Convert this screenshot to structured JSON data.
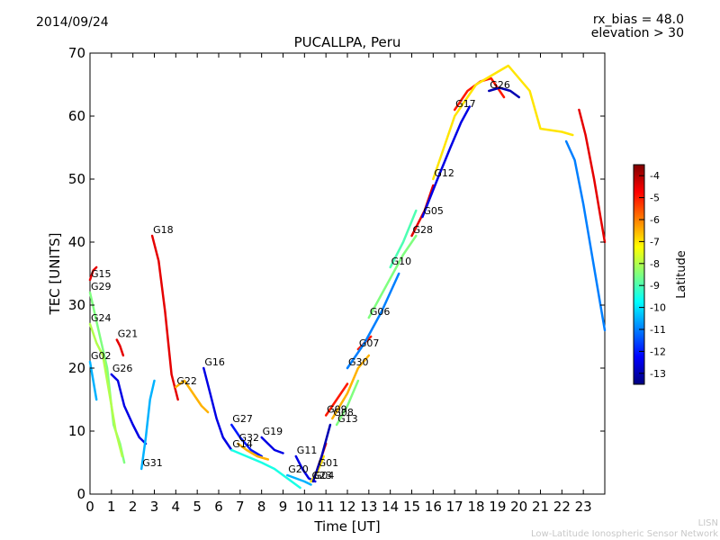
{
  "header": {
    "date": "2014/09/24",
    "rx_bias": "rx_bias = 48.0",
    "elevation": "elevation > 30"
  },
  "footer": {
    "line1": "LISN",
    "line2": "Low-Latitude Ionospheric Sensor Network"
  },
  "colorbar": {
    "label": "Latitude",
    "min": -13.5,
    "max": -3.5,
    "ticks": [
      "-4",
      "-5",
      "-6",
      "-7",
      "-8",
      "-9",
      "-10",
      "-11",
      "-12",
      "-13"
    ],
    "colors": [
      "#00007f",
      "#0000ff",
      "#007fff",
      "#00ffff",
      "#7fff7f",
      "#ffff00",
      "#ff7f00",
      "#ff0000",
      "#7f0000"
    ]
  },
  "chart_data": {
    "type": "scatter",
    "title": "PUCALLPA, Peru",
    "xlabel": "Time [UT]",
    "ylabel": "TEC [UNITS]",
    "xlim": [
      0,
      24
    ],
    "ylim": [
      0,
      70
    ],
    "xticks": [
      "0",
      "1",
      "2",
      "3",
      "4",
      "5",
      "6",
      "7",
      "8",
      "9",
      "10",
      "11",
      "12",
      "13",
      "14",
      "15",
      "16",
      "17",
      "18",
      "19",
      "20",
      "21",
      "22",
      "23"
    ],
    "yticks": [
      "0",
      "10",
      "20",
      "30",
      "40",
      "50",
      "60",
      "70"
    ],
    "color_variable": "Latitude",
    "series": [
      {
        "name": "G15",
        "lat": -4.5,
        "x": [
          0.0,
          0.15,
          0.3
        ],
        "y": [
          34,
          35.5,
          36
        ]
      },
      {
        "name": "G29",
        "lat": -8.5,
        "x": [
          0.0,
          0.4,
          0.8,
          1.1,
          1.4,
          1.6
        ],
        "y": [
          32,
          26,
          20,
          11,
          8,
          5
        ]
      },
      {
        "name": "G24",
        "lat": -8.0,
        "x": [
          0.0,
          0.3,
          0.6,
          0.9,
          1.2,
          1.5
        ],
        "y": [
          27,
          24,
          22,
          16,
          10,
          6
        ]
      },
      {
        "name": "G02",
        "lat": -10.5,
        "x": [
          0.0,
          0.15,
          0.3
        ],
        "y": [
          21,
          18,
          15
        ]
      },
      {
        "name": "G21",
        "lat": -4.5,
        "x": [
          1.25,
          1.4,
          1.55
        ],
        "y": [
          24.5,
          23.5,
          22
        ]
      },
      {
        "name": "G26",
        "lat": -12.5,
        "x": [
          1.0,
          1.3,
          1.6,
          2.0,
          2.3,
          2.6
        ],
        "y": [
          19,
          18,
          14,
          11,
          9,
          8
        ]
      },
      {
        "name": "G31",
        "lat": -10.5,
        "x": [
          2.4,
          2.6,
          2.8,
          3.0
        ],
        "y": [
          4,
          9,
          15,
          18
        ]
      },
      {
        "name": "G18",
        "lat": -4.5,
        "x": [
          2.9,
          3.2,
          3.5,
          3.8,
          4.1
        ],
        "y": [
          41,
          37,
          29,
          19,
          15
        ]
      },
      {
        "name": "G22",
        "lat": -6.5,
        "x": [
          4.0,
          4.4,
          4.8,
          5.2,
          5.5
        ],
        "y": [
          17,
          18,
          16,
          14,
          13
        ]
      },
      {
        "name": "G16",
        "lat": -12.5,
        "x": [
          5.3,
          5.6,
          5.9,
          6.2,
          6.6
        ],
        "y": [
          20,
          16,
          12,
          9,
          7
        ]
      },
      {
        "name": "G27",
        "lat": -12.0,
        "x": [
          6.6,
          7.0,
          7.5,
          8.0
        ],
        "y": [
          11,
          9,
          7,
          6
        ]
      },
      {
        "name": "G32",
        "lat": -6.5,
        "x": [
          6.9,
          7.3,
          7.8,
          8.3
        ],
        "y": [
          8,
          7,
          6,
          5.5
        ]
      },
      {
        "name": "G14",
        "lat": -9.5,
        "x": [
          6.6,
          7.3,
          8.0,
          8.6,
          9.2,
          9.8
        ],
        "y": [
          7,
          6,
          5,
          4,
          2.5,
          1
        ]
      },
      {
        "name": "G19",
        "lat": -12.5,
        "x": [
          8.0,
          8.3,
          8.6,
          9.0
        ],
        "y": [
          9,
          8,
          7,
          6.5
        ]
      },
      {
        "name": "G11",
        "lat": -12.5,
        "x": [
          9.6,
          9.9,
          10.2,
          10.5
        ],
        "y": [
          6,
          4,
          2.5,
          2
        ]
      },
      {
        "name": "G20",
        "lat": -10.5,
        "x": [
          9.2,
          9.6,
          10.0,
          10.3
        ],
        "y": [
          3,
          2.5,
          2,
          1.5
        ]
      },
      {
        "name": "G23",
        "lat": -7.0,
        "x": [
          10.3,
          10.6,
          10.9
        ],
        "y": [
          2,
          3.5,
          6
        ]
      },
      {
        "name": "G01",
        "lat": -5.0,
        "x": [
          10.6,
          10.8,
          11.0
        ],
        "y": [
          4,
          6,
          8
        ]
      },
      {
        "name": "G04",
        "lat": -13.0,
        "x": [
          10.4,
          10.8,
          11.2
        ],
        "y": [
          2,
          6,
          11
        ]
      },
      {
        "name": "G09",
        "lat": -5.0,
        "x": [
          11.0,
          11.5,
          12.0
        ],
        "y": [
          12.5,
          15,
          17.5
        ]
      },
      {
        "name": "G13",
        "lat": -8.5,
        "x": [
          11.5,
          12.0,
          12.5
        ],
        "y": [
          11,
          14,
          18
        ]
      },
      {
        "name": "G08",
        "lat": -6.5,
        "x": [
          11.3,
          12.0,
          12.5,
          13.0
        ],
        "y": [
          12,
          16,
          20,
          22
        ]
      },
      {
        "name": "G07",
        "lat": -5.0,
        "x": [
          12.5,
          12.8,
          13.1
        ],
        "y": [
          23,
          24,
          25
        ]
      },
      {
        "name": "G30",
        "lat": -11.0,
        "x": [
          12.0,
          12.8,
          13.6,
          14.4
        ],
        "y": [
          20,
          24,
          29,
          35
        ]
      },
      {
        "name": "G06",
        "lat": -8.5,
        "x": [
          13.0,
          13.8,
          14.6,
          15.2
        ],
        "y": [
          28,
          33,
          38,
          41
        ]
      },
      {
        "name": "G10",
        "lat": -9.0,
        "x": [
          14.0,
          14.6,
          15.2
        ],
        "y": [
          36,
          40,
          45
        ]
      },
      {
        "name": "G28",
        "lat": -4.5,
        "x": [
          15.0,
          15.6,
          16.0
        ],
        "y": [
          41,
          45,
          49
        ]
      },
      {
        "name": "G05",
        "lat": -12.5,
        "x": [
          15.5,
          16.2,
          16.8,
          17.3,
          17.7
        ],
        "y": [
          44,
          50,
          55,
          59,
          61.5
        ]
      },
      {
        "name": "G17",
        "lat": -5.0,
        "x": [
          17.0,
          17.6,
          18.2,
          18.7,
          19.3
        ],
        "y": [
          61,
          64,
          65.5,
          66,
          63
        ]
      },
      {
        "name": "G26",
        "lat": -13.0,
        "x": [
          18.6,
          19.1,
          19.6,
          20.0
        ],
        "y": [
          64,
          64.5,
          64,
          63
        ]
      },
      {
        "name": "G12",
        "lat": -7.0,
        "x": [
          16.0,
          17.0,
          18.0,
          19.0,
          19.5,
          20.5,
          21.0,
          22.0,
          22.5
        ],
        "y": [
          50,
          60,
          65,
          67,
          68,
          64,
          58,
          57.5,
          57
        ]
      },
      {
        "name": "",
        "lat": -11.0,
        "x": [
          22.2,
          22.6,
          23.0,
          23.4,
          23.8,
          24.0
        ],
        "y": [
          56,
          53,
          46,
          38,
          30,
          26
        ]
      },
      {
        "name": "",
        "lat": -4.5,
        "x": [
          22.8,
          23.1,
          23.5,
          23.8,
          24.0
        ],
        "y": [
          61,
          57,
          50,
          44,
          40
        ]
      }
    ]
  }
}
